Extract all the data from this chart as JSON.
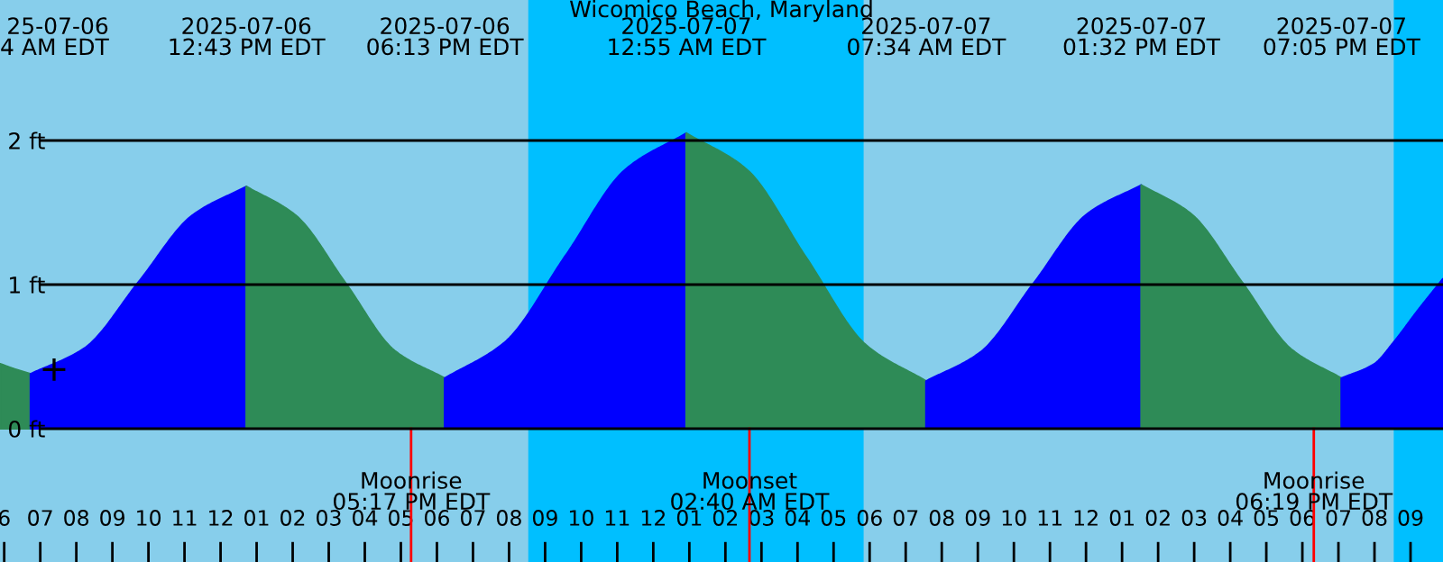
{
  "chart_data": {
    "type": "area",
    "title": "Wicomico Beach, Maryland",
    "series": [
      {
        "color": "#2e8b57",
        "x": [
          "2025-07-06T05:53",
          "2025-07-06T06:20",
          "2025-07-06T06:44"
        ],
        "values": [
          0.45,
          0.41,
          0.38
        ]
      },
      {
        "color": "#0000ff",
        "x": [
          "2025-07-06T06:44",
          "2025-07-06T08:14",
          "2025-07-06T09:44",
          "2025-07-06T11:13",
          "2025-07-06T12:43"
        ],
        "values": [
          0.38,
          0.56,
          1.02,
          1.48,
          1.68
        ]
      },
      {
        "color": "#2e8b57",
        "x": [
          "2025-07-06T12:43",
          "2025-07-06T14:05",
          "2025-07-06T15:28",
          "2025-07-06T16:50",
          "2025-07-06T18:13"
        ],
        "values": [
          1.68,
          1.48,
          1.01,
          0.54,
          0.35
        ]
      },
      {
        "color": "#0000ff",
        "x": [
          "2025-07-06T18:13",
          "2025-07-06T19:53",
          "2025-07-06T21:34",
          "2025-07-06T23:14",
          "2025-07-07T00:55"
        ],
        "values": [
          0.35,
          0.6,
          1.2,
          1.8,
          2.05
        ]
      },
      {
        "color": "#2e8b57",
        "x": [
          "2025-07-07T00:55",
          "2025-07-07T02:35",
          "2025-07-07T04:14",
          "2025-07-07T05:54",
          "2025-07-07T07:34"
        ],
        "values": [
          2.05,
          1.8,
          1.19,
          0.58,
          0.33
        ]
      },
      {
        "color": "#0000ff",
        "x": [
          "2025-07-07T07:34",
          "2025-07-07T09:04",
          "2025-07-07T10:33",
          "2025-07-07T12:02",
          "2025-07-07T13:32"
        ],
        "values": [
          0.33,
          0.53,
          1.01,
          1.49,
          1.69
        ]
      },
      {
        "color": "#2e8b57",
        "x": [
          "2025-07-07T13:32",
          "2025-07-07T14:55",
          "2025-07-07T16:19",
          "2025-07-07T17:42",
          "2025-07-07T19:05"
        ],
        "values": [
          1.69,
          1.49,
          1.02,
          0.55,
          0.35
        ]
      },
      {
        "color": "#0000ff",
        "x": [
          "2025-07-07T19:05",
          "2025-07-07T20:00",
          "2025-07-07T20:32",
          "2025-07-07T21:12",
          "2025-07-07T21:54"
        ],
        "values": [
          0.35,
          0.45,
          0.6,
          0.82,
          1.04
        ]
      },
      {
        "type": "scatter",
        "marker": "cross",
        "color": "#000000",
        "x": [
          "2025-07-06T07:23"
        ],
        "values": [
          0.41
        ]
      }
    ],
    "xlim": [
      "2025-07-06T05:53",
      "2025-07-07T21:54"
    ],
    "xticks": [
      {
        "value": "2025-07-06T06:00",
        "label": "6"
      },
      {
        "value": "2025-07-06T07:00",
        "label": "07"
      },
      {
        "value": "2025-07-06T08:00",
        "label": "08"
      },
      {
        "value": "2025-07-06T09:00",
        "label": "09"
      },
      {
        "value": "2025-07-06T10:00",
        "label": "10"
      },
      {
        "value": "2025-07-06T11:00",
        "label": "11"
      },
      {
        "value": "2025-07-06T12:00",
        "label": "12"
      },
      {
        "value": "2025-07-06T13:00",
        "label": "01"
      },
      {
        "value": "2025-07-06T14:00",
        "label": "02"
      },
      {
        "value": "2025-07-06T15:00",
        "label": "03"
      },
      {
        "value": "2025-07-06T16:00",
        "label": "04"
      },
      {
        "value": "2025-07-06T17:00",
        "label": "05"
      },
      {
        "value": "2025-07-06T18:00",
        "label": "06"
      },
      {
        "value": "2025-07-06T19:00",
        "label": "07"
      },
      {
        "value": "2025-07-06T20:00",
        "label": "08"
      },
      {
        "value": "2025-07-06T21:00",
        "label": "09"
      },
      {
        "value": "2025-07-06T22:00",
        "label": "10"
      },
      {
        "value": "2025-07-06T23:00",
        "label": "11"
      },
      {
        "value": "2025-07-07T00:00",
        "label": "12"
      },
      {
        "value": "2025-07-07T01:00",
        "label": "01"
      },
      {
        "value": "2025-07-07T02:00",
        "label": "02"
      },
      {
        "value": "2025-07-07T03:00",
        "label": "03"
      },
      {
        "value": "2025-07-07T04:00",
        "label": "04"
      },
      {
        "value": "2025-07-07T05:00",
        "label": "05"
      },
      {
        "value": "2025-07-07T06:00",
        "label": "06"
      },
      {
        "value": "2025-07-07T07:00",
        "label": "07"
      },
      {
        "value": "2025-07-07T08:00",
        "label": "08"
      },
      {
        "value": "2025-07-07T09:00",
        "label": "09"
      },
      {
        "value": "2025-07-07T10:00",
        "label": "10"
      },
      {
        "value": "2025-07-07T11:00",
        "label": "11"
      },
      {
        "value": "2025-07-07T12:00",
        "label": "12"
      },
      {
        "value": "2025-07-07T13:00",
        "label": "01"
      },
      {
        "value": "2025-07-07T14:00",
        "label": "02"
      },
      {
        "value": "2025-07-07T15:00",
        "label": "03"
      },
      {
        "value": "2025-07-07T16:00",
        "label": "04"
      },
      {
        "value": "2025-07-07T17:00",
        "label": "05"
      },
      {
        "value": "2025-07-07T18:00",
        "label": "06"
      },
      {
        "value": "2025-07-07T19:00",
        "label": "07"
      },
      {
        "value": "2025-07-07T20:00",
        "label": "08"
      },
      {
        "value": "2025-07-07T21:00",
        "label": "09"
      }
    ],
    "ylim": [
      -0.925,
      2.975
    ],
    "yticks": [
      {
        "value": 0,
        "label": "0 ft"
      },
      {
        "value": 1,
        "label": "1 ft"
      },
      {
        "value": 2,
        "label": "2 ft"
      }
    ],
    "grid": "y",
    "bands": [
      {
        "axis": "x",
        "from": "2025-07-06T20:32",
        "to": "2025-07-07T05:50",
        "color": "#00bfff"
      },
      {
        "axis": "x",
        "from": "2025-07-07T20:32",
        "to": "2025-07-07T21:54",
        "color": "#00bfff"
      }
    ],
    "ref_lines": [
      {
        "axis": "x",
        "value": "2025-07-06T17:17",
        "label": "Moonrise\n05:17 PM EDT",
        "color": "#ff0000"
      },
      {
        "axis": "x",
        "value": "2025-07-07T02:40",
        "label": "Moonset\n02:40 AM EDT",
        "color": "#ff0000"
      },
      {
        "axis": "x",
        "value": "2025-07-07T18:19",
        "label": "Moonrise\n06:19 PM EDT",
        "color": "#ff0000"
      }
    ],
    "annotations": [
      "25-07-06\n4 AM EDT",
      "2025-07-06\n12:43 PM EDT",
      "2025-07-06\n06:13 PM EDT",
      "2025-07-07\n12:55 AM EDT",
      "2025-07-07\n07:34 AM EDT",
      "2025-07-07\n01:32 PM EDT",
      "2025-07-07\n07:05 PM EDT"
    ]
  }
}
